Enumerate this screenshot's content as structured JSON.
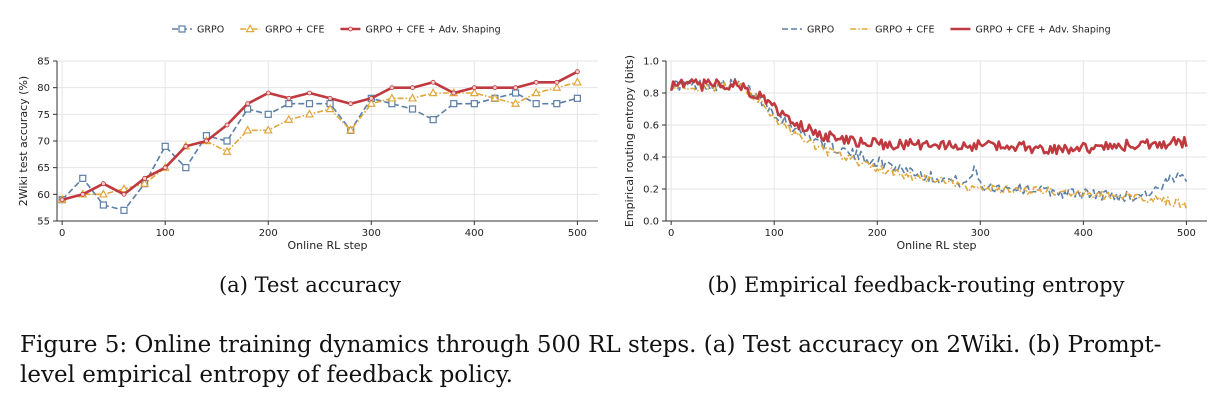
{
  "colors": {
    "grpo": "#5b7fa6",
    "cfe": "#e0a73c",
    "adv": "#c0393f",
    "grid": "#e6e6e6"
  },
  "caption": "Figure 5: Online training dynamics through 500 RL steps. (a) Test accuracy on 2Wiki. (b) Prompt-level empirical entropy of feedback policy.",
  "chart_data": [
    {
      "type": "line",
      "subcaption": "(a) Test accuracy",
      "xlabel": "Online RL step",
      "ylabel": "2Wiki test accuracy (%)",
      "xlim": [
        -5,
        520
      ],
      "ylim": [
        55,
        85
      ],
      "xticks": [
        0,
        100,
        200,
        300,
        400,
        500
      ],
      "yticks": [
        55,
        60,
        65,
        70,
        75,
        80,
        85
      ],
      "grid": true,
      "legend": "top-center",
      "x": [
        0,
        20,
        40,
        60,
        80,
        100,
        120,
        140,
        160,
        180,
        200,
        220,
        240,
        260,
        280,
        300,
        320,
        340,
        360,
        380,
        400,
        420,
        440,
        460,
        480,
        500
      ],
      "series": [
        {
          "name": "GRPO",
          "marker": "square",
          "dash": "dashed",
          "values": [
            59,
            63,
            58,
            57,
            62,
            69,
            65,
            71,
            70,
            76,
            75,
            77,
            77,
            77,
            72,
            78,
            77,
            76,
            74,
            77,
            77,
            78,
            79,
            77,
            77,
            78
          ]
        },
        {
          "name": "GRPO + CFE",
          "marker": "triangle",
          "dash": "dashdot",
          "values": [
            59,
            60,
            60,
            61,
            62,
            65,
            69,
            70,
            68,
            72,
            72,
            74,
            75,
            76,
            72,
            77,
            78,
            78,
            79,
            79,
            79,
            78,
            77,
            79,
            80,
            81
          ]
        },
        {
          "name": "GRPO + CFE + Adv. Shaping",
          "marker": "dot",
          "dash": "solid",
          "values": [
            59,
            60,
            62,
            60,
            63,
            65,
            69,
            70,
            73,
            77,
            79,
            78,
            79,
            78,
            77,
            78,
            80,
            80,
            81,
            79,
            80,
            80,
            80,
            81,
            81,
            83
          ]
        }
      ]
    },
    {
      "type": "line",
      "subcaption": "(b) Empirical feedback-routing entropy",
      "xlabel": "Online RL step",
      "ylabel": "Empirical routing entropy (bits)",
      "xlim": [
        -5,
        520
      ],
      "ylim": [
        0.0,
        1.0
      ],
      "xticks": [
        0,
        100,
        200,
        300,
        400,
        500
      ],
      "yticks": [
        0.0,
        0.2,
        0.4,
        0.6,
        0.8,
        1.0
      ],
      "grid": true,
      "legend": "top-center",
      "x": [
        0,
        25,
        50,
        65,
        80,
        100,
        125,
        150,
        175,
        200,
        225,
        250,
        275,
        290,
        295,
        300,
        325,
        350,
        375,
        400,
        425,
        450,
        475,
        485,
        500
      ],
      "series": [
        {
          "name": "GRPO",
          "dash": "dashed",
          "values": [
            0.85,
            0.85,
            0.85,
            0.86,
            0.8,
            0.68,
            0.56,
            0.48,
            0.42,
            0.37,
            0.33,
            0.28,
            0.25,
            0.24,
            0.36,
            0.22,
            0.21,
            0.2,
            0.18,
            0.17,
            0.16,
            0.15,
            0.2,
            0.26,
            0.28
          ]
        },
        {
          "name": "GRPO + CFE",
          "dash": "dashdot",
          "values": [
            0.85,
            0.84,
            0.84,
            0.85,
            0.78,
            0.65,
            0.52,
            0.44,
            0.38,
            0.33,
            0.29,
            0.26,
            0.23,
            0.21,
            0.2,
            0.2,
            0.19,
            0.19,
            0.18,
            0.17,
            0.16,
            0.15,
            0.14,
            0.12,
            0.1
          ]
        },
        {
          "name": "GRPO + CFE + Adv. Shaping",
          "dash": "solid",
          "values": [
            0.85,
            0.85,
            0.85,
            0.85,
            0.8,
            0.71,
            0.6,
            0.53,
            0.5,
            0.48,
            0.48,
            0.47,
            0.47,
            0.47,
            0.47,
            0.47,
            0.47,
            0.46,
            0.45,
            0.46,
            0.46,
            0.48,
            0.48,
            0.49,
            0.49
          ]
        }
      ]
    }
  ]
}
